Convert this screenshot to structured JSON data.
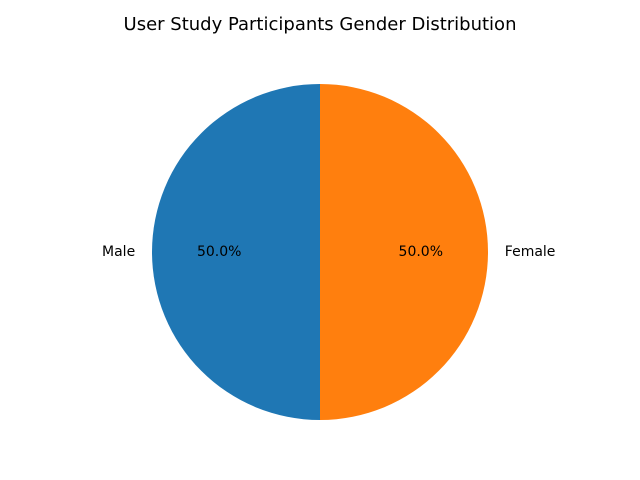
{
  "chart_data": {
    "type": "pie",
    "title": "User Study Participants Gender Distribution",
    "categories": [
      "Male",
      "Female"
    ],
    "values": [
      50,
      50
    ],
    "labels": [
      "Male",
      "Female"
    ],
    "percent_labels": [
      "50.0%",
      "50.0%"
    ],
    "colors": [
      "#1f77b4",
      "#ff7f0e"
    ],
    "start_angle_deg": 90,
    "direction": "counterclockwise"
  }
}
